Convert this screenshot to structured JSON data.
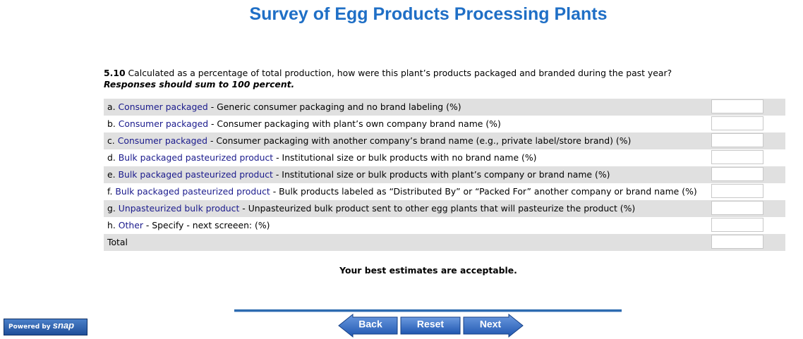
{
  "header": {
    "title": "Survey of Egg Products Processing Plants"
  },
  "question": {
    "number": "5.10",
    "text": "Calculated as a percentage of total production, how were this plant’s products packaged and branded during the past year?",
    "instruction": "Responses should sum to 100 percent."
  },
  "rows": [
    {
      "letter": "a.",
      "category": "Consumer packaged",
      "description": "- Generic consumer packaging and no brand labeling (%)"
    },
    {
      "letter": "b.",
      "category": "Consumer packaged",
      "description": "- Consumer packaging with plant’s own company brand name (%)"
    },
    {
      "letter": "c.",
      "category": "Consumer packaged",
      "description": "- Consumer packaging with another company’s brand name (e.g., private label/store brand) (%)"
    },
    {
      "letter": "d.",
      "category": "Bulk packaged pasteurized product",
      "description": "- Institutional size or bulk products with no brand name (%)"
    },
    {
      "letter": "e.",
      "category": "Bulk packaged pasteurized product",
      "description": "- Institutional size or bulk products with plant’s company or brand name (%)"
    },
    {
      "letter": "f.",
      "category": "Bulk packaged pasteurized product",
      "description": "- Bulk products labeled as “Distributed By” or “Packed For” another company or brand name (%)"
    },
    {
      "letter": "g.",
      "category": "Unpasteurized bulk product",
      "description": "- Unpasteurized bulk product sent to other egg plants that will pasteurize the product (%)"
    },
    {
      "letter": "h.",
      "category": "Other",
      "description": "- Specify - next screeen: (%)"
    }
  ],
  "total": {
    "label": "Total"
  },
  "note": "Your best estimates are acceptable.",
  "buttons": {
    "back": "Back",
    "reset": "Reset",
    "next": "Next"
  },
  "badge": {
    "prefix": "Powered by",
    "brand": "snap"
  }
}
